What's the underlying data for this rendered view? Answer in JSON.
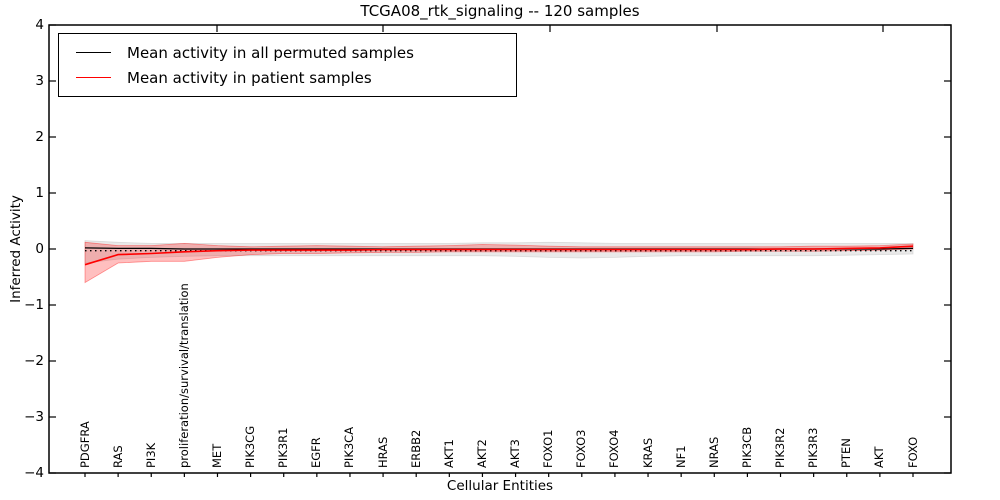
{
  "title": "TCGA08_rtk_signaling -- 120 samples",
  "legend": {
    "items": [
      {
        "label": "Mean activity in all permuted samples",
        "color": "#000000"
      },
      {
        "label": "Mean activity in patient samples",
        "color": "#ff0000"
      }
    ]
  },
  "chart_data": {
    "type": "line",
    "title": "TCGA08_rtk_signaling -- 120 samples",
    "xlabel": "Cellular Entities",
    "ylabel": "Inferred Activity",
    "ylim": [
      -4,
      4
    ],
    "yticks": [
      4,
      3,
      2,
      1,
      0,
      -1,
      -2,
      -3,
      -4
    ],
    "ytick_labels": [
      "4",
      "3",
      "2",
      "1",
      "0",
      "−1",
      "−2",
      "−3",
      "−4"
    ],
    "grid": false,
    "legend_position": "upper left",
    "categories": [
      "PDGFRA",
      "RAS",
      "PI3K",
      "proliferation/survival/translation",
      "MET",
      "PIK3CG",
      "PIK3R1",
      "EGFR",
      "PIK3CA",
      "HRAS",
      "ERBB2",
      "AKT1",
      "AKT2",
      "AKT3",
      "FOXO1",
      "FOXO3",
      "FOXO4",
      "KRAS",
      "NF1",
      "NRAS",
      "PIK3CB",
      "PIK3R2",
      "PIK3R3",
      "PTEN",
      "AKT",
      "FOXO"
    ],
    "series": [
      {
        "name": "Mean activity in all permuted samples",
        "color": "#000000",
        "band_color": "#bbbbbb",
        "values": [
          0.02,
          0.01,
          0.01,
          0.0,
          0.0,
          0.0,
          0.0,
          0.0,
          0.0,
          0.0,
          0.0,
          0.0,
          0.0,
          0.0,
          0.0,
          0.0,
          0.0,
          0.0,
          0.0,
          0.0,
          0.0,
          0.0,
          0.0,
          0.0,
          0.0,
          0.01
        ],
        "band_upper": [
          0.15,
          0.12,
          0.1,
          0.1,
          0.1,
          0.1,
          0.1,
          0.1,
          0.1,
          0.1,
          0.1,
          0.1,
          0.11,
          0.11,
          0.12,
          0.11,
          0.1,
          0.1,
          0.1,
          0.1,
          0.1,
          0.1,
          0.1,
          0.1,
          0.1,
          0.1
        ],
        "band_lower": [
          -0.25,
          -0.18,
          -0.15,
          -0.13,
          -0.12,
          -0.12,
          -0.12,
          -0.12,
          -0.12,
          -0.12,
          -0.12,
          -0.12,
          -0.12,
          -0.13,
          -0.15,
          -0.16,
          -0.15,
          -0.13,
          -0.12,
          -0.12,
          -0.12,
          -0.12,
          -0.12,
          -0.11,
          -0.1,
          -0.09
        ]
      },
      {
        "name": "Mean activity in patient samples",
        "color": "#ff0000",
        "band_color": "#ff0000",
        "values": [
          -0.28,
          -0.1,
          -0.08,
          -0.05,
          -0.03,
          -0.02,
          -0.02,
          -0.02,
          -0.02,
          -0.01,
          -0.01,
          -0.01,
          -0.01,
          -0.01,
          -0.01,
          -0.01,
          -0.01,
          -0.01,
          -0.01,
          -0.01,
          -0.01,
          0.0,
          0.0,
          0.01,
          0.02,
          0.05
        ],
        "band_upper": [
          0.12,
          0.06,
          0.06,
          0.1,
          0.06,
          0.04,
          0.05,
          0.06,
          0.05,
          0.04,
          0.05,
          0.06,
          0.08,
          0.07,
          0.05,
          0.04,
          0.04,
          0.04,
          0.04,
          0.04,
          0.04,
          0.04,
          0.05,
          0.05,
          0.06,
          0.09
        ],
        "band_lower": [
          -0.6,
          -0.25,
          -0.22,
          -0.22,
          -0.15,
          -0.1,
          -0.08,
          -0.08,
          -0.07,
          -0.06,
          -0.06,
          -0.05,
          -0.05,
          -0.05,
          -0.05,
          -0.05,
          -0.05,
          -0.05,
          -0.05,
          -0.05,
          -0.04,
          -0.04,
          -0.04,
          -0.03,
          -0.02,
          0.0
        ]
      }
    ],
    "dotted_reference_line": {
      "value": -0.03,
      "color": "#000000",
      "style": "dotted"
    }
  }
}
